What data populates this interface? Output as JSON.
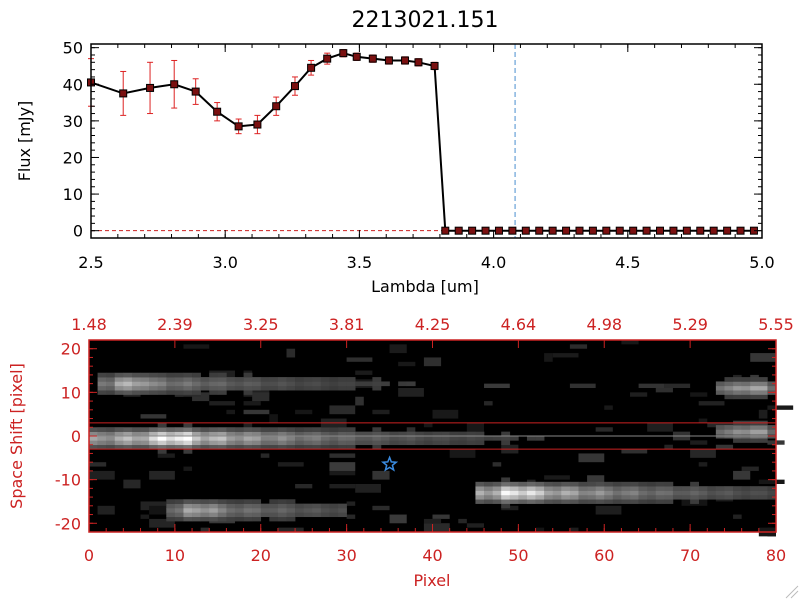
{
  "title": "2213021.151",
  "colors": {
    "axis_black": "#000000",
    "axis_red": "#cc2222",
    "errorbar": "#dd2222",
    "marker_fill": "#7a1010",
    "vline": "#4a8fd0",
    "star": "#3a8be0",
    "image_bg": "#000000"
  },
  "chart_data": [
    {
      "type": "line",
      "xlabel": "Lambda [um]",
      "ylabel": "Flux [mJy]",
      "xlim": [
        2.5,
        5.0
      ],
      "ylim": [
        -2,
        51
      ],
      "x_ticks": [
        2.5,
        3.0,
        3.5,
        4.0,
        4.5,
        5.0
      ],
      "x_tick_labels": [
        "2.5",
        "3.0",
        "3.5",
        "4.0",
        "4.5",
        "5.0"
      ],
      "y_ticks": [
        0,
        10,
        20,
        30,
        40,
        50
      ],
      "y_tick_labels": [
        "0",
        "10",
        "20",
        "30",
        "40",
        "50"
      ],
      "grid": false,
      "vertical_line_x": 4.08,
      "horizontal_line_y": 0,
      "series": [
        {
          "x": [
            2.5,
            2.62,
            2.72,
            2.81,
            2.89,
            2.97,
            3.05,
            3.12,
            3.19,
            3.26,
            3.32,
            3.38,
            3.44,
            3.49,
            3.55,
            3.61,
            3.67,
            3.72,
            3.78,
            3.82,
            3.87,
            3.92,
            3.97,
            4.02,
            4.07,
            4.12,
            4.17,
            4.22,
            4.27,
            4.32,
            4.37,
            4.42,
            4.47,
            4.52,
            4.57,
            4.62,
            4.67,
            4.72,
            4.77,
            4.82,
            4.87,
            4.92,
            4.97
          ],
          "y": [
            40.5,
            37.5,
            39.0,
            40.0,
            38.0,
            32.5,
            28.5,
            29.0,
            34.0,
            39.5,
            44.5,
            47.0,
            48.5,
            47.5,
            47.0,
            46.5,
            46.5,
            46.0,
            45.0,
            0,
            0,
            0,
            0,
            0,
            0,
            0,
            0,
            0,
            0,
            0,
            0,
            0,
            0,
            0,
            0,
            0,
            0,
            0,
            0,
            0,
            0,
            0,
            0
          ],
          "yerr": [
            6.5,
            6.0,
            7.0,
            6.5,
            3.5,
            2.5,
            2.0,
            2.5,
            2.5,
            2.5,
            2.0,
            1.5,
            1.0,
            1.0,
            1.0,
            1.0,
            1.0,
            1.0,
            1.0,
            0,
            0,
            0,
            0,
            0,
            0,
            0,
            0,
            0,
            0,
            0,
            0,
            0,
            0,
            0,
            0,
            0,
            0,
            0,
            0,
            0,
            0,
            0,
            0
          ]
        }
      ]
    },
    {
      "type": "heatmap",
      "xlabel": "Pixel",
      "ylabel": "Space Shift [pixel]",
      "xlim": [
        0,
        80
      ],
      "ylim": [
        -22,
        22
      ],
      "x_ticks": [
        0,
        10,
        20,
        30,
        40,
        50,
        60,
        70,
        80
      ],
      "x_tick_labels": [
        "0",
        "10",
        "20",
        "30",
        "40",
        "50",
        "60",
        "70",
        "80"
      ],
      "y_ticks": [
        -20,
        -10,
        0,
        10,
        20
      ],
      "y_tick_labels": [
        "-20",
        "-10",
        "0",
        "10",
        "20"
      ],
      "top_tick_labels": [
        "1.48",
        "2.39",
        "3.25",
        "3.81",
        "4.25",
        "4.64",
        "4.98",
        "5.29",
        "5.55"
      ],
      "aperture_lines_y": [
        3,
        -3
      ],
      "center_line_y": 0,
      "star_marker": {
        "x": 35,
        "y": -6.5
      },
      "features": [
        {
          "x0": 0,
          "x1": 64,
          "y": -0.5,
          "peak_x": 10,
          "peak": 1.0,
          "width": 3
        },
        {
          "x0": 1,
          "x1": 46,
          "y": 12,
          "peak_x": 5,
          "peak": 0.55,
          "width": 3
        },
        {
          "x0": 9,
          "x1": 30,
          "y": -17,
          "peak_x": 13,
          "peak": 0.5,
          "width": 3
        },
        {
          "x0": 45,
          "x1": 80,
          "y": -13,
          "peak_x": 50,
          "peak": 0.9,
          "width": 3
        },
        {
          "x0": 73,
          "x1": 80,
          "y": 11,
          "peak_x": 77,
          "peak": 0.5,
          "width": 2
        },
        {
          "x0": 73,
          "x1": 80,
          "y": 1,
          "peak_x": 77,
          "peak": 0.45,
          "width": 2
        }
      ]
    }
  ]
}
